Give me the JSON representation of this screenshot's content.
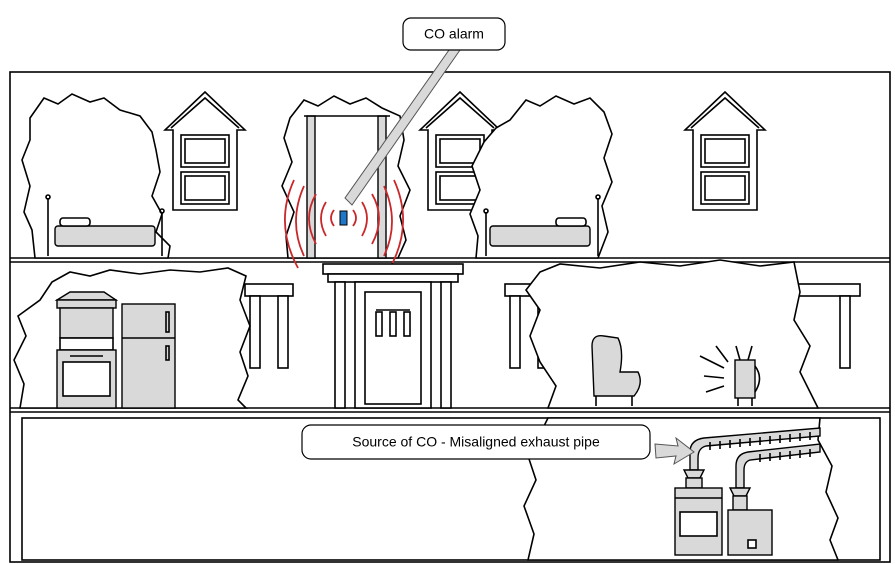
{
  "callouts": [
    {
      "label": "CO alarm"
    },
    {
      "label": "Source of CO - Misaligned exhaust pipe"
    }
  ]
}
